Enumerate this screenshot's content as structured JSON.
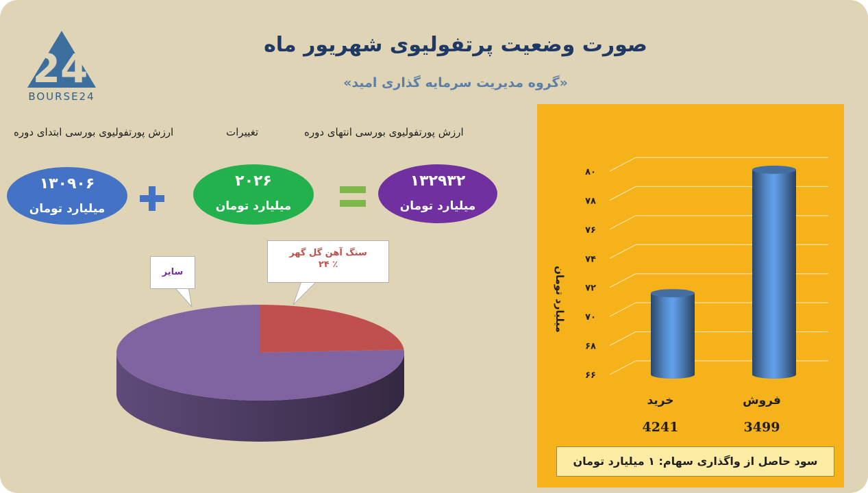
{
  "logo": {
    "text": "BOURSE24",
    "mark": "24"
  },
  "header": {
    "title": "صورت وضعیت پرتفولیوی شهریور ماه",
    "subtitle": "«گروه مدیریت سرمایه گذاری امید»"
  },
  "summary": {
    "start_label": "ارزش پورتفولیوی بورسی ابتدای دوره",
    "change_label": "تغییرات",
    "end_label": "ارزش پورتفولیوی بورسی انتهای دوره",
    "start_value": "۱۳۰۹۰۶",
    "change_value": "۲۰۲۶",
    "end_value": "۱۳۲۹۳۲",
    "unit": "میلیارد تومان",
    "colors": {
      "start": "#4472c4",
      "change": "#22b14c",
      "end": "#7030a0"
    }
  },
  "chart_data": [
    {
      "type": "pie",
      "slices": [
        {
          "label": "سنگ آهن گل گهر",
          "label_pct": "٪ ۲۴",
          "value": 24,
          "color": "#c0504d"
        },
        {
          "label": "سایر",
          "value": 76,
          "color": "#8064a2"
        }
      ]
    },
    {
      "type": "bar",
      "categories": [
        "خرید",
        "فروش"
      ],
      "values": [
        71.6,
        80.1
      ],
      "category_values": [
        "4241",
        "3499"
      ],
      "ylabel": "میلیارد تومان",
      "ylim": [
        66,
        80
      ],
      "yticks": [
        66,
        68,
        70,
        72,
        74,
        76,
        78,
        80
      ],
      "ytick_labels": [
        "۶۶",
        "۶۸",
        "۷۰",
        "۷۲",
        "۷۴",
        "۷۶",
        "۷۸",
        "۸۰"
      ],
      "grid": true,
      "colors": {
        "background": "#f5b21b",
        "bar": "#4f81bd"
      }
    }
  ],
  "footer_note": "سود حاصل از واگذاری سهام:  ۱  میلیارد تومان"
}
